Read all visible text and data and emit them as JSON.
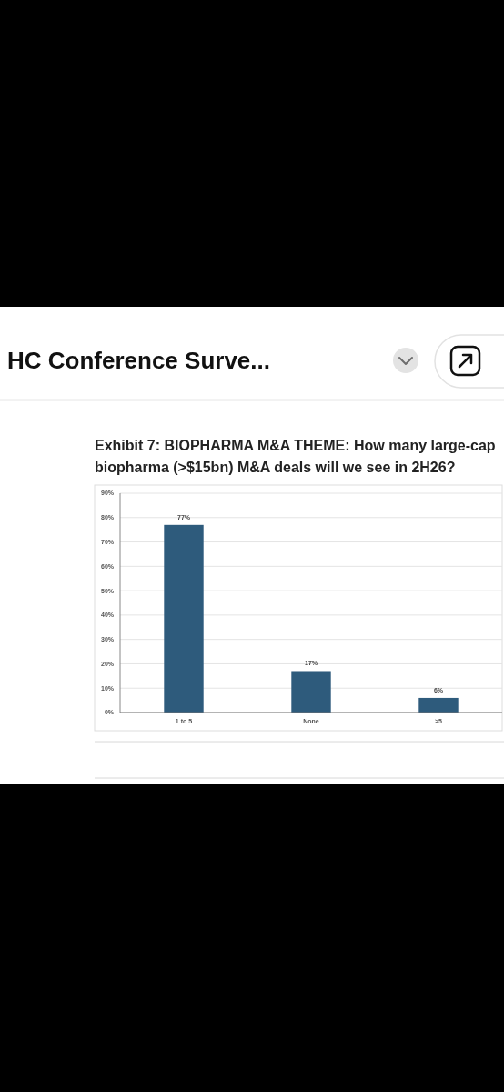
{
  "chart_data": {
    "type": "bar",
    "title": "Exhibit 7: BIOPHARMA M&A THEME: How many large-cap biopharma (>$15bn) M&A deals will we see in 2H26?",
    "categories": [
      "1 to 5",
      "None",
      ">5"
    ],
    "values": [
      77,
      17,
      6
    ],
    "value_labels": [
      "77%",
      "17%",
      "6%"
    ],
    "color": "#2e5b7c",
    "ylim": [
      0,
      90
    ],
    "yticks": [
      {
        "value": 0,
        "label": "0%"
      },
      {
        "value": 10,
        "label": "10%"
      },
      {
        "value": 20,
        "label": "20%"
      },
      {
        "value": 30,
        "label": "30%"
      },
      {
        "value": 40,
        "label": "40%"
      },
      {
        "value": 50,
        "label": "50%"
      },
      {
        "value": 60,
        "label": "60%"
      },
      {
        "value": 70,
        "label": "70%"
      },
      {
        "value": 80,
        "label": "80%"
      },
      {
        "value": 90,
        "label": "90%"
      }
    ],
    "grid": "y",
    "annotations": [
      "HC Conference Surve..."
    ]
  }
}
